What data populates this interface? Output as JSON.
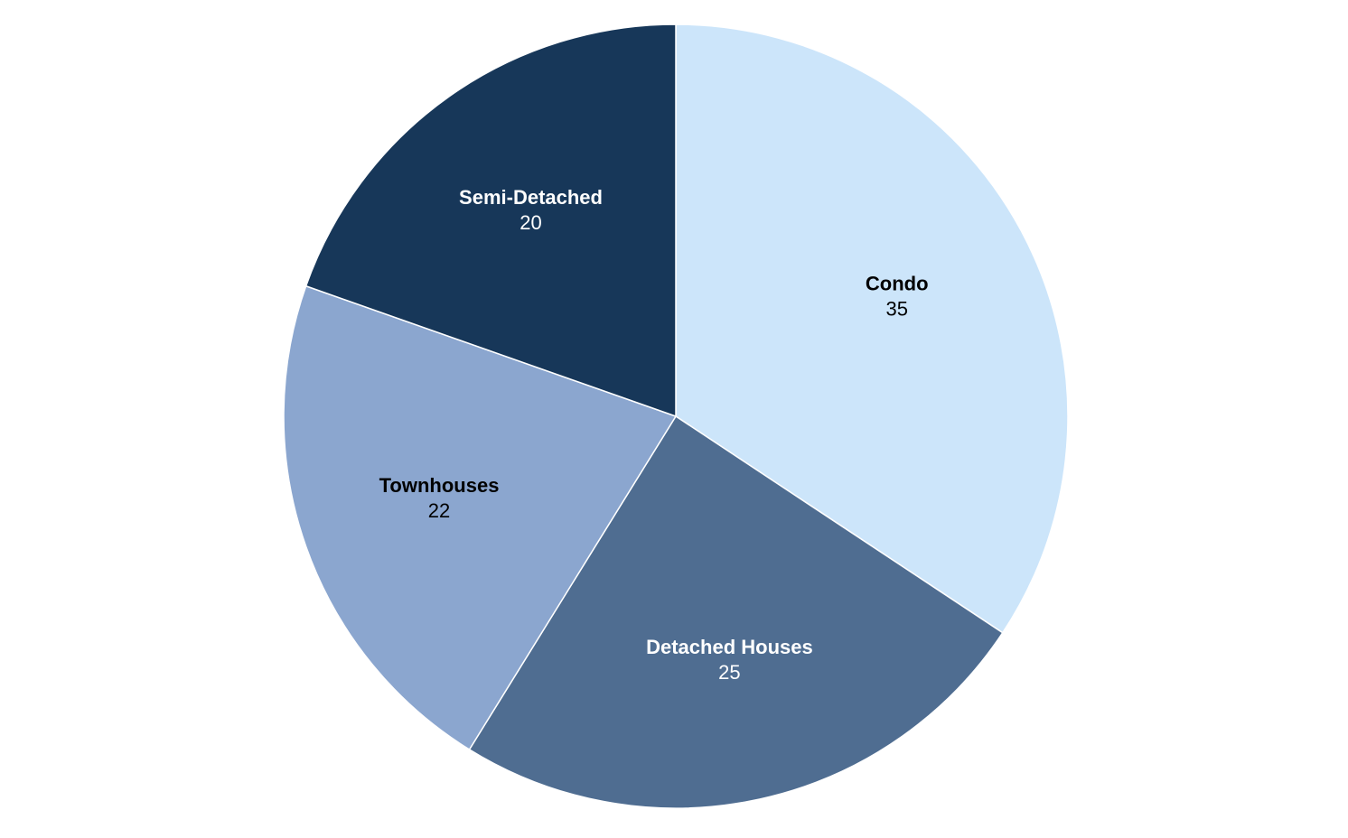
{
  "chart_data": {
    "type": "pie",
    "categories": [
      "Condo",
      "Detached Houses",
      "Townhouses",
      "Semi-Detached"
    ],
    "values": [
      35,
      25,
      22,
      20
    ],
    "colors": [
      "#cce5fa",
      "#4f6d91",
      "#8ba6cf",
      "#173759"
    ]
  }
}
